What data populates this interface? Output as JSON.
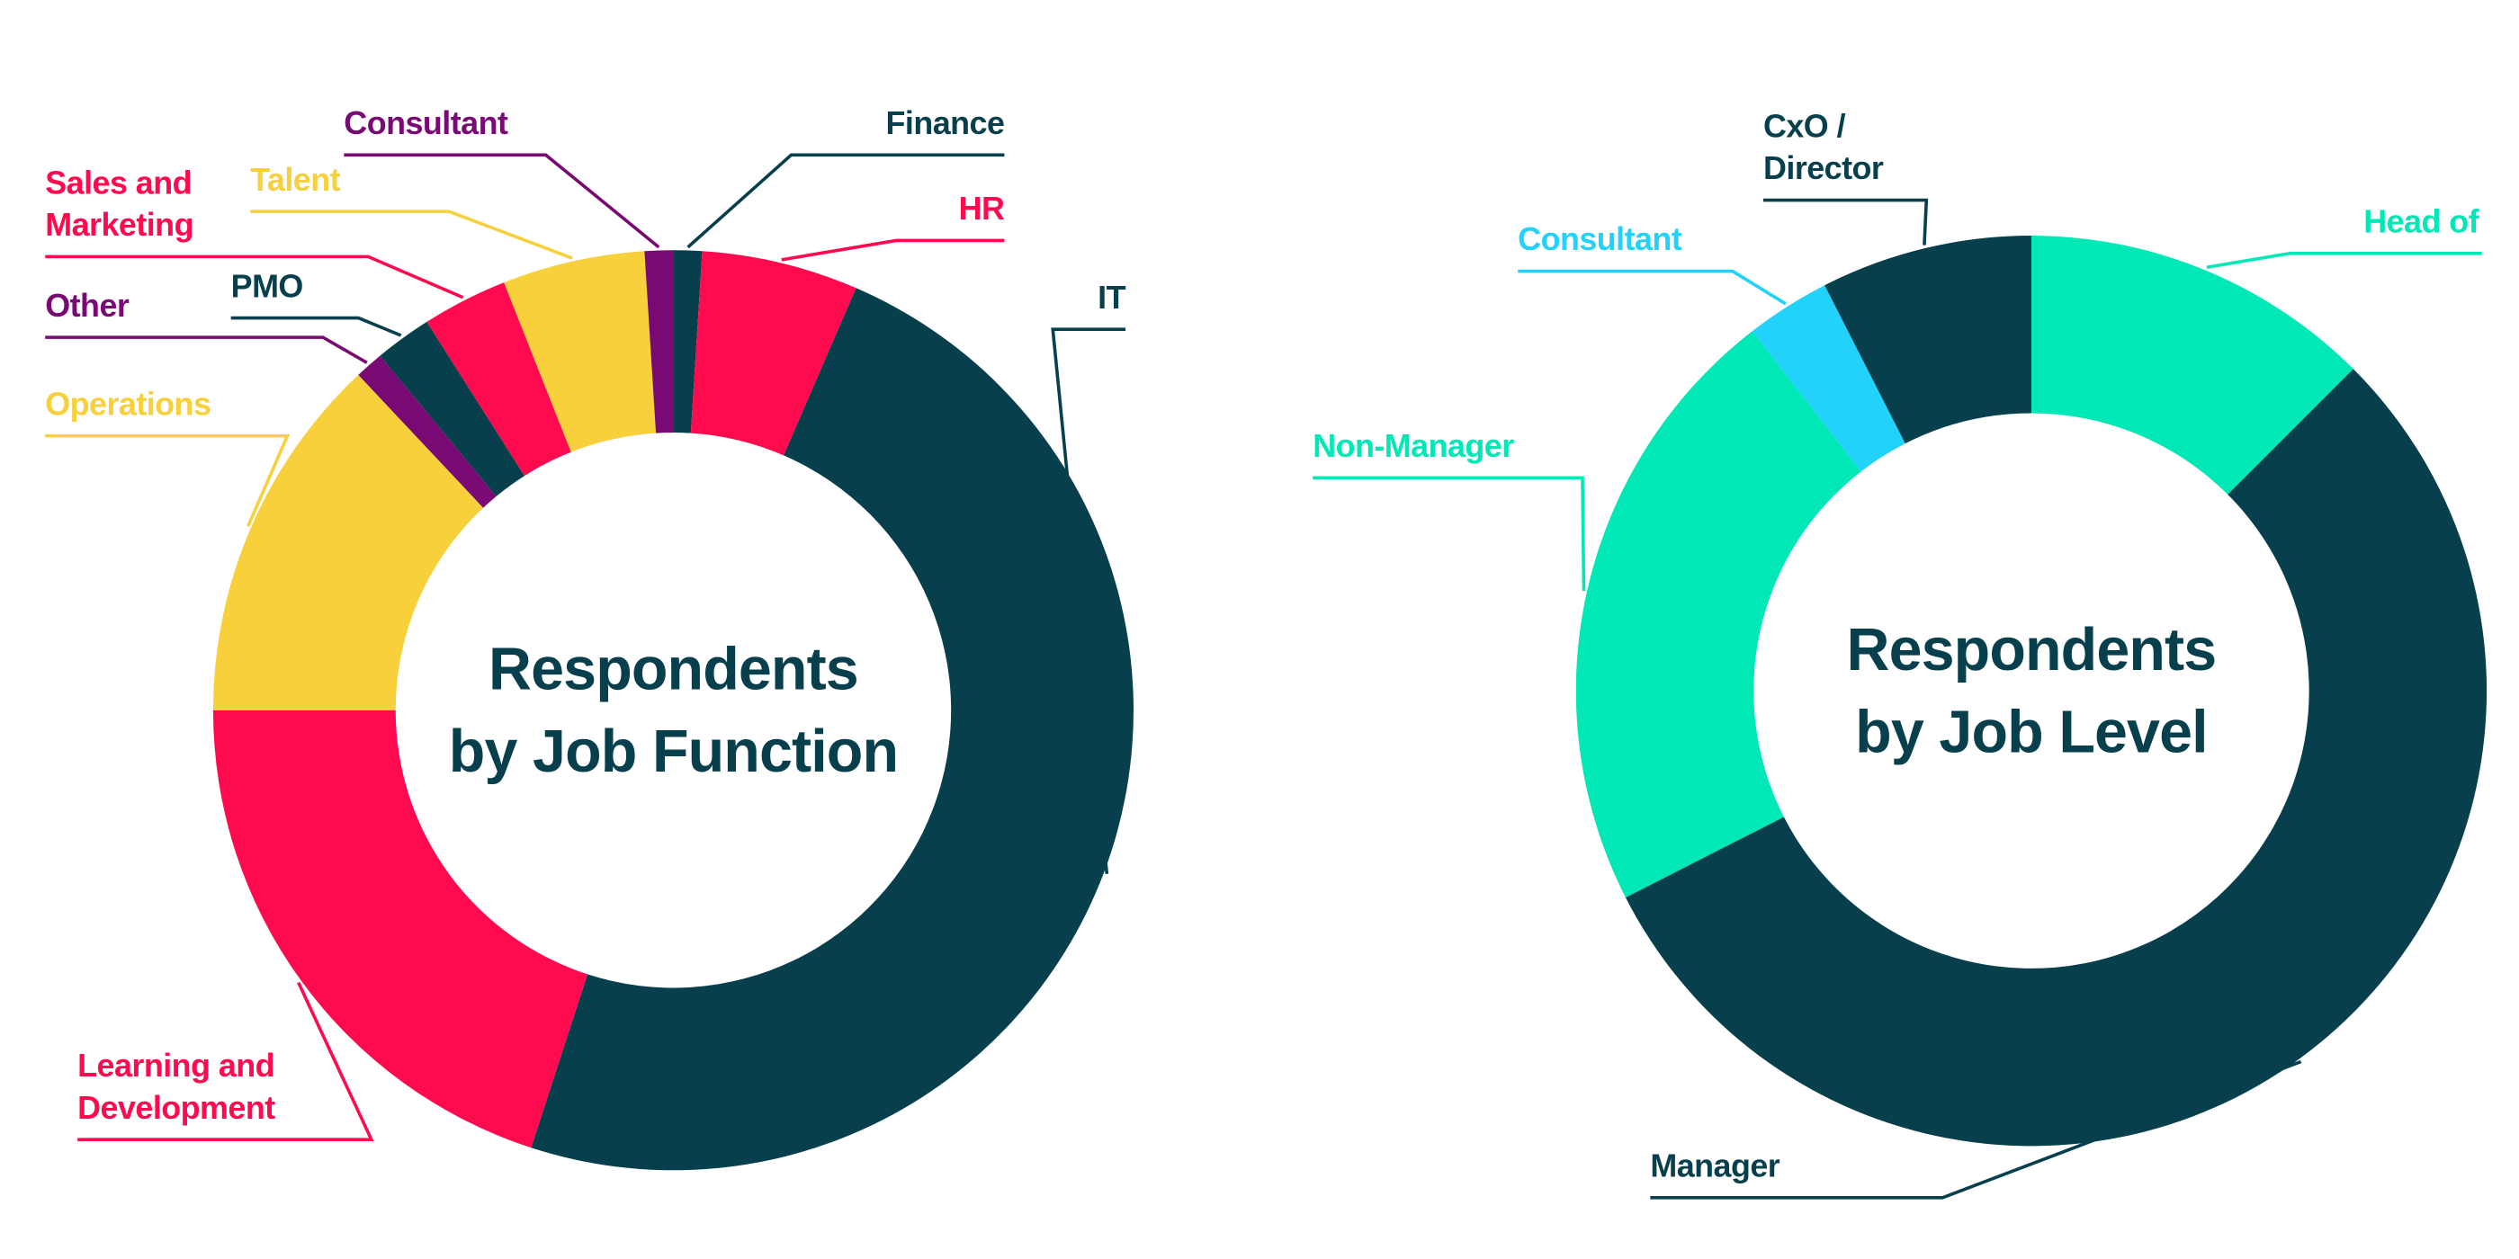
{
  "chart_data": [
    {
      "type": "donut",
      "title": "Respondents by Job Function",
      "categories": [
        "Finance",
        "HR",
        "IT",
        "Learning and Development",
        "Operations",
        "Other",
        "PMO",
        "Sales and Marketing",
        "Talent",
        "Consultant"
      ],
      "values": [
        1,
        5.5,
        48.5,
        20,
        13,
        1,
        2,
        3,
        5,
        1
      ],
      "colors": [
        "#073f4d",
        "#ff0a4e",
        "#073f4d",
        "#ff0a4e",
        "#f7d03c",
        "#7a0a73",
        "#073f4d",
        "#ff0a4e",
        "#f7d03c",
        "#7a0a73"
      ]
    },
    {
      "type": "donut",
      "title": "Respondents by Job Level",
      "categories": [
        "Head of",
        "Manager",
        "Non-Manager",
        "Consultant",
        "CxO / Director"
      ],
      "values": [
        12.5,
        55,
        22,
        3,
        7.5
      ],
      "colors": [
        "#00e8b5",
        "#073f4d",
        "#00e8b5",
        "#22d2fa",
        "#073f4d"
      ]
    }
  ]
}
